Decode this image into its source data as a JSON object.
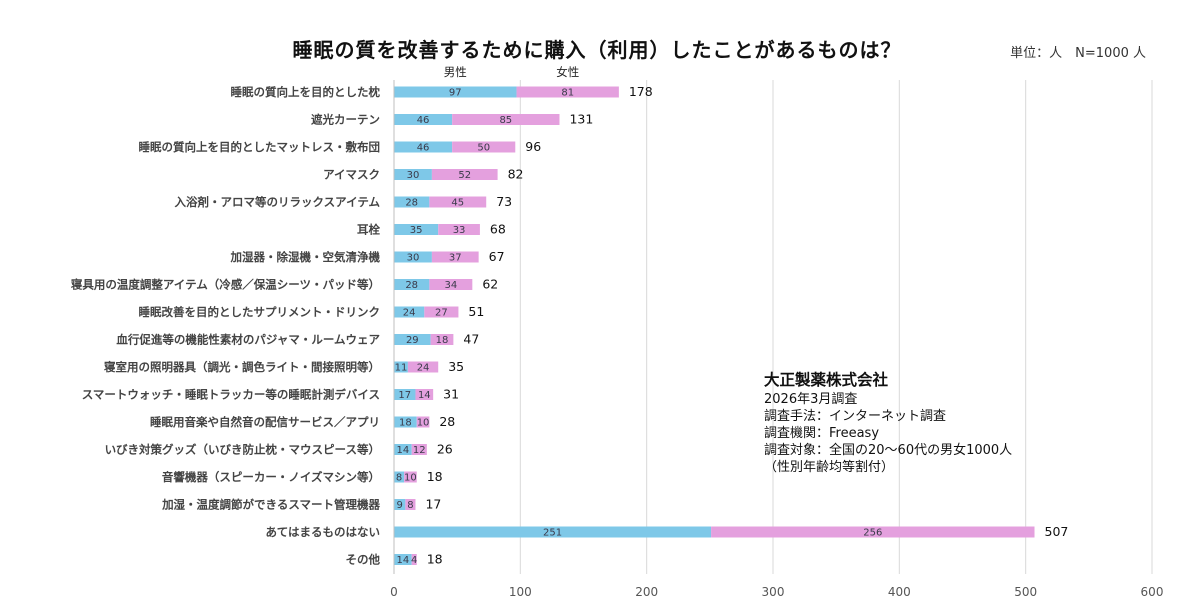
{
  "header": {
    "title": "睡眠の質を改善するために購入（利用）したことがあるものは？",
    "unit": "単位：人　N=1000 人"
  },
  "colors": {
    "male": "#7ec8e8",
    "female": "#e4a0de",
    "grid": "#d9d9d9"
  },
  "info": {
    "company": "大正製薬株式会社",
    "lines": [
      "2026年3月調査",
      "調査手法：インターネット調査",
      "調査機関：Freeasy",
      "調査対象：全国の20〜60代の男女1000人",
      "（性別年齢均等割付）"
    ]
  },
  "chart_data": {
    "type": "bar",
    "orientation": "horizontal",
    "stacked": true,
    "title": "睡眠の質を改善するために購入（利用）したことがあるものは？",
    "xlabel": "",
    "ylabel": "",
    "xlim": [
      0,
      600
    ],
    "xticks": [
      "0",
      "100",
      "200",
      "300",
      "400",
      "500",
      "600"
    ],
    "grid": true,
    "legend": {
      "position": "top-left",
      "entries": [
        "男性",
        "女性"
      ]
    },
    "categories": [
      "睡眠の質向上を目的とした枕",
      "遮光カーテン",
      "睡眠の質向上を目的としたマットレス・敷布団",
      "アイマスク",
      "入浴剤・アロマ等のリラックスアイテム",
      "耳栓",
      "加湿器・除湿機・空気清浄機",
      "寝具用の温度調整アイテム（冷感／保温シーツ・パッド等）",
      "睡眠改善を目的としたサプリメント・ドリンク",
      "血行促進等の機能性素材のパジャマ・ルームウェア",
      "寝室用の照明器具（調光・調色ライト・間接照明等）",
      "スマートウォッチ・睡眠トラッカー等の睡眠計測デバイス",
      "睡眠用音楽や自然音の配信サービス／アプリ",
      "いびき対策グッズ（いびき防止枕・マウスピース等）",
      "音響機器（スピーカー・ノイズマシン等）",
      "加湿・温度調節ができるスマート管理機器",
      "あてはまるものはない",
      "その他"
    ],
    "series": [
      {
        "name": "男性",
        "values": [
          97,
          46,
          46,
          30,
          28,
          35,
          30,
          28,
          24,
          29,
          11,
          17,
          18,
          14,
          8,
          9,
          251,
          14
        ]
      },
      {
        "name": "女性",
        "values": [
          81,
          85,
          50,
          52,
          45,
          33,
          37,
          34,
          27,
          18,
          24,
          14,
          10,
          12,
          10,
          8,
          256,
          4
        ]
      }
    ],
    "totals": [
      178,
      131,
      96,
      82,
      73,
      68,
      67,
      62,
      51,
      47,
      35,
      31,
      28,
      26,
      18,
      17,
      507,
      18
    ]
  }
}
